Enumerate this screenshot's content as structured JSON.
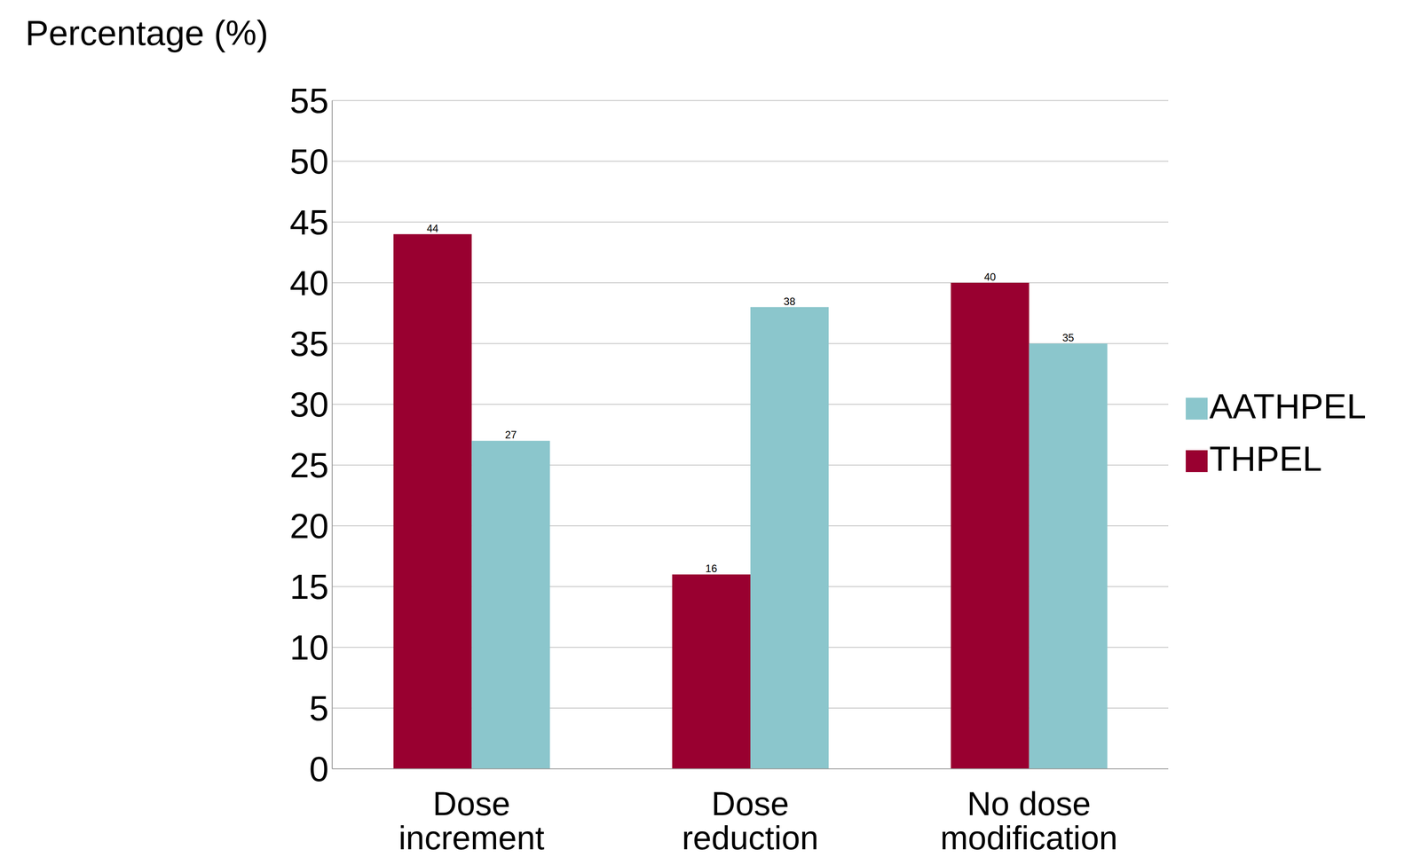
{
  "chart_data": {
    "type": "bar",
    "ylabel": "Percentage (%)",
    "categories": [
      "Dose increment",
      "Dose reduction",
      "No dose modification"
    ],
    "series": [
      {
        "name": "THPEL",
        "color": "#990030",
        "values": [
          44,
          16,
          40
        ]
      },
      {
        "name": "AATHPEL",
        "color": "#8bc6cc",
        "values": [
          27,
          38,
          35
        ]
      }
    ],
    "ylim": [
      0,
      55
    ],
    "yticks": [
      0,
      5,
      10,
      15,
      20,
      25,
      30,
      35,
      40,
      45,
      50,
      55
    ],
    "grid": true,
    "legend": "right",
    "data_labels": true
  }
}
